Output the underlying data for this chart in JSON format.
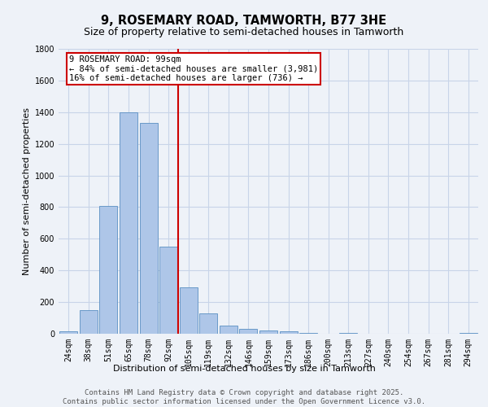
{
  "title": "9, ROSEMARY ROAD, TAMWORTH, B77 3HE",
  "subtitle": "Size of property relative to semi-detached houses in Tamworth",
  "xlabel": "Distribution of semi-detached houses by size in Tamworth",
  "ylabel": "Number of semi-detached properties",
  "categories": [
    "24sqm",
    "38sqm",
    "51sqm",
    "65sqm",
    "78sqm",
    "92sqm",
    "105sqm",
    "119sqm",
    "132sqm",
    "146sqm",
    "159sqm",
    "173sqm",
    "186sqm",
    "200sqm",
    "213sqm",
    "227sqm",
    "240sqm",
    "254sqm",
    "267sqm",
    "281sqm",
    "294sqm"
  ],
  "values": [
    15,
    150,
    810,
    1400,
    1330,
    550,
    295,
    130,
    50,
    30,
    20,
    15,
    5,
    0,
    5,
    0,
    0,
    0,
    0,
    0,
    5
  ],
  "bar_color": "#aec6e8",
  "bar_edge_color": "#5a8fc2",
  "property_line_x": 5.5,
  "annotation_text_line1": "9 ROSEMARY ROAD: 99sqm",
  "annotation_text_line2": "← 84% of semi-detached houses are smaller (3,981)",
  "annotation_text_line3": "16% of semi-detached houses are larger (736) →",
  "annotation_box_color": "#ffffff",
  "annotation_box_edge_color": "#cc0000",
  "vline_color": "#cc0000",
  "ylim": [
    0,
    1800
  ],
  "yticks": [
    0,
    200,
    400,
    600,
    800,
    1000,
    1200,
    1400,
    1600,
    1800
  ],
  "grid_color": "#c8d4e8",
  "background_color": "#eef2f8",
  "footer_line1": "Contains HM Land Registry data © Crown copyright and database right 2025.",
  "footer_line2": "Contains public sector information licensed under the Open Government Licence v3.0.",
  "title_fontsize": 10.5,
  "subtitle_fontsize": 9,
  "axis_label_fontsize": 8,
  "tick_fontsize": 7,
  "annotation_fontsize": 7.5,
  "footer_fontsize": 6.5
}
